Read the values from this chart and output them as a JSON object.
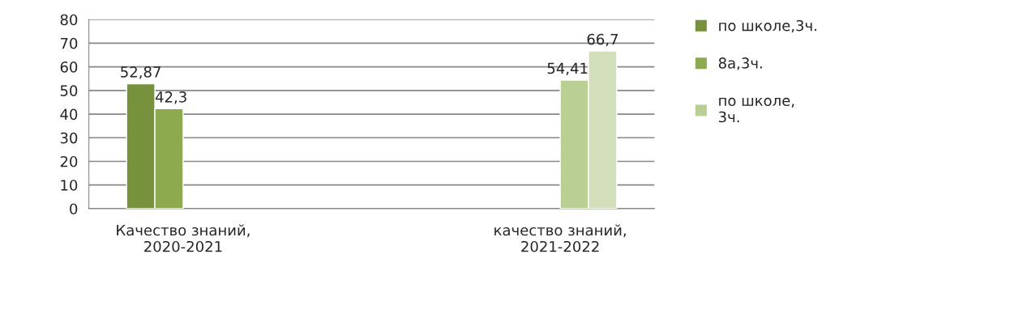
{
  "chart_data": {
    "type": "bar",
    "categories": [
      "Качество знаний,\n2020-2021",
      null,
      "качество знаний,\n2021-2022"
    ],
    "series": [
      {
        "name": "по школе,3ч.",
        "color": "#76923c",
        "values": [
          52.87,
          null,
          null
        ],
        "value_labels": [
          "52,87",
          null,
          null
        ]
      },
      {
        "name": "8а,3ч.",
        "color": "#8eaa4f",
        "values": [
          42.3,
          null,
          null
        ],
        "value_labels": [
          "42,3",
          null,
          null
        ]
      },
      {
        "name": "по школе,\n3ч.",
        "color": "#b9cf93",
        "values": [
          null,
          null,
          54.41
        ],
        "value_labels": [
          null,
          null,
          "54,41"
        ]
      },
      {
        "color": "#d3dfbb",
        "values": [
          null,
          null,
          66.7
        ],
        "value_labels": [
          null,
          null,
          "66,7"
        ]
      }
    ],
    "ylim": [
      0,
      80
    ],
    "yticks": [
      0,
      10,
      20,
      30,
      40,
      50,
      60,
      70,
      80
    ],
    "grid": "y",
    "legend": "right"
  }
}
